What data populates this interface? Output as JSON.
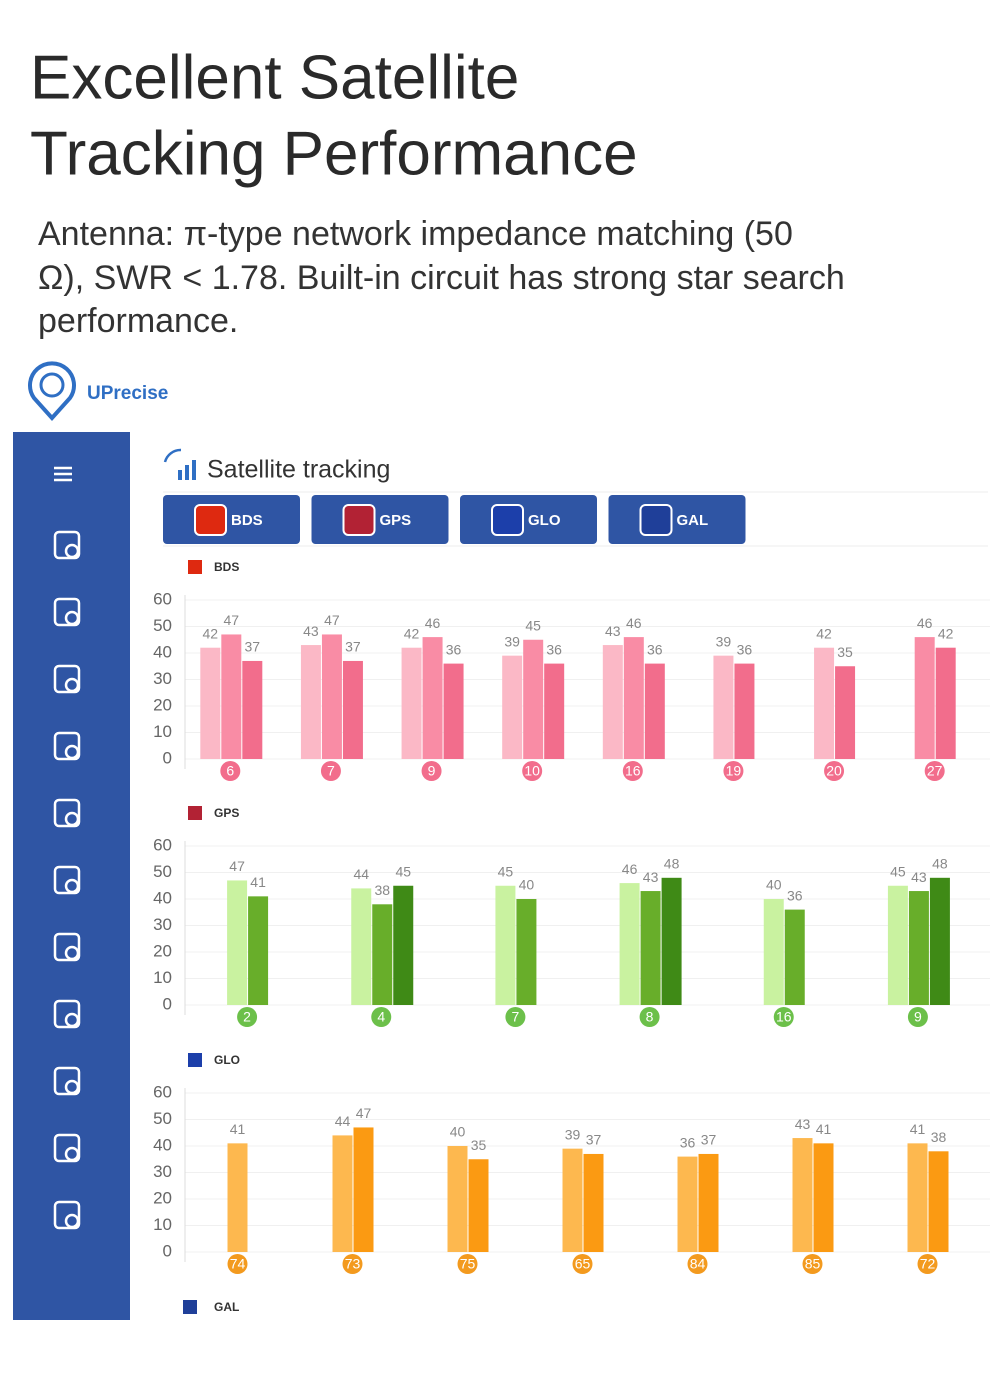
{
  "header": {
    "title_lines": [
      "Excellent Satellite",
      "Tracking Performance"
    ],
    "subtitle_lines": [
      "Antenna: π-type network impedance matching (50",
      "Ω), SWR < 1.78. Built-in circuit has strong star search",
      "performance."
    ]
  },
  "brand": {
    "name": "UPrecise"
  },
  "app": {
    "title": "Satellite tracking",
    "tabs": [
      "BDS",
      "GPS",
      "GLO",
      "GAL"
    ],
    "last_section": "GAL"
  },
  "chart_data": [
    {
      "type": "bar",
      "title": "BDS",
      "categories": [
        "6",
        "7",
        "9",
        "10",
        "16",
        "19",
        "20",
        "27"
      ],
      "series": [
        {
          "color": "#fbb8c6",
          "values": [
            42,
            43,
            42,
            39,
            43,
            39,
            42,
            null
          ]
        },
        {
          "color": "#f98ca5",
          "values": [
            47,
            47,
            46,
            45,
            46,
            null,
            null,
            46
          ]
        },
        {
          "color": "#f26d8c",
          "values": [
            37,
            37,
            36,
            36,
            36,
            36,
            35,
            42
          ]
        }
      ],
      "ylim": [
        0,
        60
      ],
      "yticks": [
        0,
        10,
        20,
        30,
        40,
        50,
        60
      ],
      "grid": true,
      "label_color": "#f26d8c"
    },
    {
      "type": "bar",
      "title": "GPS",
      "categories": [
        "2",
        "4",
        "7",
        "8",
        "16",
        "9"
      ],
      "series": [
        {
          "color": "#c9f2a0",
          "values": [
            47,
            44,
            45,
            46,
            40,
            45
          ]
        },
        {
          "color": "#68ae2a",
          "values": [
            41,
            38,
            40,
            43,
            36,
            43
          ]
        },
        {
          "color": "#3f8a16",
          "values": [
            null,
            45,
            null,
            48,
            null,
            48
          ]
        }
      ],
      "ylim": [
        0,
        60
      ],
      "yticks": [
        0,
        10,
        20,
        30,
        40,
        50,
        60
      ],
      "grid": true,
      "label_color": "#6cc04a"
    },
    {
      "type": "bar",
      "title": "GLO",
      "categories": [
        "74",
        "73",
        "75",
        "65",
        "84",
        "85",
        "72"
      ],
      "series": [
        {
          "color": "#fdb84f",
          "values": [
            41,
            44,
            40,
            39,
            36,
            43,
            41
          ]
        },
        {
          "color": "#fb9a12",
          "values": [
            null,
            47,
            35,
            37,
            37,
            41,
            38
          ]
        }
      ],
      "ylim": [
        0,
        60
      ],
      "yticks": [
        0,
        10,
        20,
        30,
        40,
        50,
        60
      ],
      "grid": true,
      "label_color": "#f39a1e"
    }
  ]
}
